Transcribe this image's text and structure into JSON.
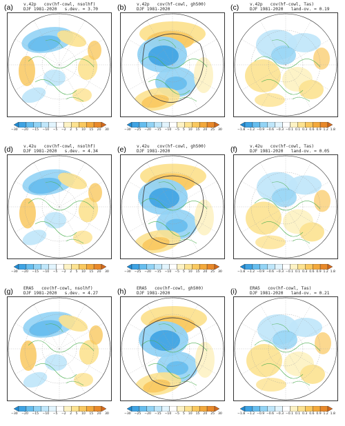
{
  "panels": [
    {
      "label": "(a)",
      "title1": "v.42p   cov(hf-cowl, nsolhf)",
      "title2": "DJF 1981-2020   s.dev. = 3.70",
      "ticks": [
        "−30",
        "−20",
        "−15",
        "−10",
        "−5",
        "−2",
        "2",
        "5",
        "10",
        "15",
        "20",
        "30"
      ]
    },
    {
      "label": "(b)",
      "title1": "v.42p   cov(hf-cowl, gh500)",
      "title2": "DJF 1981-2020",
      "ticks": [
        "−30",
        "−25",
        "−20",
        "−15",
        "−10",
        "−5",
        "5",
        "10",
        "15",
        "20",
        "25",
        "30"
      ]
    },
    {
      "label": "(c)",
      "title1": "v.42p   cov(hf-cowl, Tas)",
      "title2": "DJF 1981-2020   land-ov. = 0.19",
      "ticks": [
        "−1.8",
        "−1.2",
        "−0.9",
        "−0.6",
        "−0.3",
        "−0.1",
        "0.1",
        "0.3",
        "0.6",
        "0.9",
        "1.2",
        "1.8"
      ]
    },
    {
      "label": "(d)",
      "title1": "v.42u   cov(hf-cowl, nsolhf)",
      "title2": "DJF 1981-2020   s.dev. = 4.34",
      "ticks": [
        "−30",
        "−20",
        "−15",
        "−10",
        "−5",
        "−2",
        "2",
        "5",
        "10",
        "15",
        "20",
        "30"
      ]
    },
    {
      "label": "(e)",
      "title1": "v.42u   cov(hf-cowl, gh500)",
      "title2": "DJF 1981-2020",
      "ticks": [
        "−30",
        "−25",
        "−20",
        "−15",
        "−10",
        "−5",
        "5",
        "10",
        "15",
        "20",
        "25",
        "30"
      ]
    },
    {
      "label": "(f)",
      "title1": "v.42u   cov(hf-cowl, Tas)",
      "title2": "DJF 1981-2020   land-ov. = 0.05",
      "ticks": [
        "−1.8",
        "−1.2",
        "−0.9",
        "−0.6",
        "−0.3",
        "−0.1",
        "0.1",
        "0.3",
        "0.6",
        "0.9",
        "1.2",
        "1.8"
      ]
    },
    {
      "label": "(g)",
      "title1": "ERA5   cov(hf-cowl, nsolhf)",
      "title2": "DJF 1981-2020   s.dev. = 4.27",
      "ticks": [
        "−30",
        "−20",
        "−15",
        "−10",
        "−5",
        "−2",
        "2",
        "5",
        "10",
        "15",
        "20",
        "30"
      ]
    },
    {
      "label": "(h)",
      "title1": "ERA5   cov(hf-cowl, gh500)",
      "title2": "DJF 1981-2020",
      "ticks": [
        "−30",
        "−25",
        "−20",
        "−15",
        "−10",
        "−5",
        "5",
        "10",
        "15",
        "20",
        "25",
        "30"
      ]
    },
    {
      "label": "(i)",
      "title1": "ERA5   cov(hf-cowl, Tas)",
      "title2": "DJF 1981-2020   land-ov. = 0.21",
      "ticks": [
        "−1.8",
        "−1.2",
        "−0.9",
        "−0.6",
        "−0.3",
        "−0.1",
        "0.1",
        "0.3",
        "0.6",
        "0.9",
        "1.2",
        "1.8"
      ]
    }
  ],
  "colorbar": [
    "#1f8bd4",
    "#3ea3e3",
    "#66bdee",
    "#92d3f5",
    "#bfe6fa",
    "#e2f4fd",
    "#ffffff",
    "#fdf2c4",
    "#fce290",
    "#f9c85f",
    "#f3a93c",
    "#e8892a",
    "#d46a1c"
  ]
}
